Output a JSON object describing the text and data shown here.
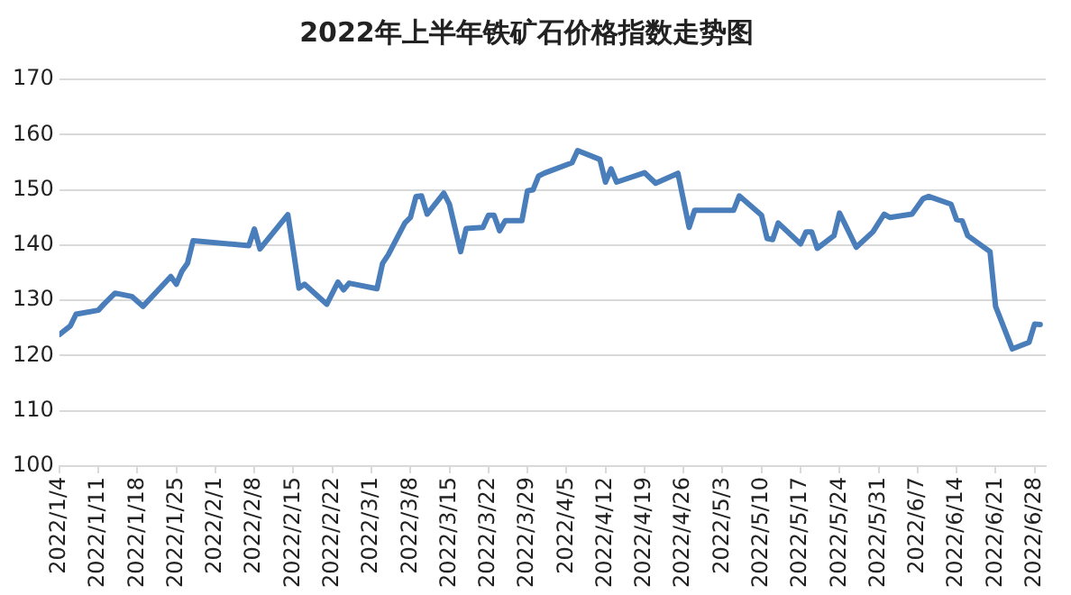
{
  "chart_data": {
    "type": "line",
    "title": "2022年上半年铁矿石价格指数走势图",
    "color": "#4a7ebb",
    "grid": "y",
    "x": [
      "2022-01-04",
      "2022-01-06",
      "2022-01-07",
      "2022-01-11",
      "2022-01-12",
      "2022-01-14",
      "2022-01-17",
      "2022-01-19",
      "2022-01-24",
      "2022-01-25",
      "2022-01-26",
      "2022-01-27",
      "2022-01-28",
      "2022-02-07",
      "2022-02-08",
      "2022-02-09",
      "2022-02-14",
      "2022-02-15",
      "2022-02-16",
      "2022-02-17",
      "2022-02-21",
      "2022-02-23",
      "2022-02-24",
      "2022-02-25",
      "2022-03-02",
      "2022-03-03",
      "2022-03-04",
      "2022-03-07",
      "2022-03-08",
      "2022-03-09",
      "2022-03-10",
      "2022-03-11",
      "2022-03-14",
      "2022-03-15",
      "2022-03-17",
      "2022-03-18",
      "2022-03-21",
      "2022-03-22",
      "2022-03-23",
      "2022-03-24",
      "2022-03-25",
      "2022-03-28",
      "2022-03-29",
      "2022-03-30",
      "2022-03-31",
      "2022-04-01",
      "2022-04-06",
      "2022-04-07",
      "2022-04-11",
      "2022-04-12",
      "2022-04-13",
      "2022-04-14",
      "2022-04-19",
      "2022-04-21",
      "2022-04-25",
      "2022-04-27",
      "2022-04-28",
      "2022-05-05",
      "2022-05-06",
      "2022-05-10",
      "2022-05-11",
      "2022-05-12",
      "2022-05-13",
      "2022-05-17",
      "2022-05-18",
      "2022-05-19",
      "2022-05-20",
      "2022-05-23",
      "2022-05-24",
      "2022-05-27",
      "2022-05-30",
      "2022-06-01",
      "2022-06-02",
      "2022-06-06",
      "2022-06-08",
      "2022-06-09",
      "2022-06-13",
      "2022-06-14",
      "2022-06-15",
      "2022-06-16",
      "2022-06-20",
      "2022-06-21",
      "2022-06-24",
      "2022-06-27",
      "2022-06-28",
      "2022-06-29"
    ],
    "values": [
      123.8,
      125.4,
      127.5,
      128.2,
      129.3,
      131.3,
      130.7,
      128.9,
      134.3,
      132.9,
      135.3,
      136.7,
      140.8,
      139.9,
      142.9,
      139.3,
      145.5,
      139.0,
      132.2,
      132.9,
      129.3,
      133.3,
      131.9,
      133.1,
      132.1,
      136.7,
      138.2,
      144.0,
      145.0,
      148.8,
      148.9,
      145.6,
      149.4,
      147.4,
      138.8,
      143.0,
      143.2,
      145.4,
      145.4,
      142.6,
      144.4,
      144.4,
      149.8,
      150.0,
      152.5,
      153.0,
      154.9,
      157.1,
      155.5,
      151.4,
      153.8,
      151.4,
      153.1,
      151.2,
      153.0,
      143.2,
      146.3,
      146.3,
      148.9,
      145.4,
      141.2,
      141.0,
      144.0,
      140.2,
      142.4,
      142.4,
      139.4,
      141.7,
      145.8,
      139.6,
      142.4,
      145.6,
      145.0,
      145.6,
      148.4,
      148.8,
      147.4,
      144.6,
      144.4,
      141.7,
      138.8,
      128.9,
      121.2,
      122.4,
      125.7,
      125.6
    ],
    "xlim": [
      "2022-01-04",
      "2022-06-30"
    ],
    "xticks": [
      {
        "value": "2022-01-04",
        "label": "2022/1/4"
      },
      {
        "value": "2022-01-11",
        "label": "2022/1/11"
      },
      {
        "value": "2022-01-18",
        "label": "2022/1/18"
      },
      {
        "value": "2022-01-25",
        "label": "2022/1/25"
      },
      {
        "value": "2022-02-01",
        "label": "2022/2/1"
      },
      {
        "value": "2022-02-08",
        "label": "2022/2/8"
      },
      {
        "value": "2022-02-15",
        "label": "2022/2/15"
      },
      {
        "value": "2022-02-22",
        "label": "2022/2/22"
      },
      {
        "value": "2022-03-01",
        "label": "2022/3/1"
      },
      {
        "value": "2022-03-08",
        "label": "2022/3/8"
      },
      {
        "value": "2022-03-15",
        "label": "2022/3/15"
      },
      {
        "value": "2022-03-22",
        "label": "2022/3/22"
      },
      {
        "value": "2022-03-29",
        "label": "2022/3/29"
      },
      {
        "value": "2022-04-05",
        "label": "2022/4/5"
      },
      {
        "value": "2022-04-12",
        "label": "2022/4/12"
      },
      {
        "value": "2022-04-19",
        "label": "2022/4/19"
      },
      {
        "value": "2022-04-26",
        "label": "2022/4/26"
      },
      {
        "value": "2022-05-03",
        "label": "2022/5/3"
      },
      {
        "value": "2022-05-10",
        "label": "2022/5/10"
      },
      {
        "value": "2022-05-17",
        "label": "2022/5/17"
      },
      {
        "value": "2022-05-24",
        "label": "2022/5/24"
      },
      {
        "value": "2022-05-31",
        "label": "2022/5/31"
      },
      {
        "value": "2022-06-07",
        "label": "2022/6/7"
      },
      {
        "value": "2022-06-14",
        "label": "2022/6/14"
      },
      {
        "value": "2022-06-21",
        "label": "2022/6/21"
      },
      {
        "value": "2022-06-28",
        "label": "2022/6/28"
      }
    ],
    "ylim": [
      100,
      170
    ],
    "yticks": [
      100,
      110,
      120,
      130,
      140,
      150,
      160,
      170
    ]
  }
}
